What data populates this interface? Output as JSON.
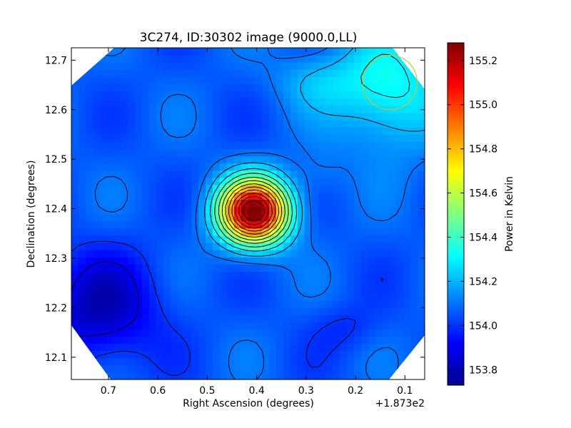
{
  "chart_data": {
    "type": "heatmap",
    "title": "3C274, ID:30302 image (9000.0,LL)",
    "xlabel": "Right Ascension (degrees)",
    "ylabel": "Declination (degrees)",
    "x_offset_label": "+1.873e2",
    "xlim": [
      0.775,
      0.06
    ],
    "ylim": [
      12.055,
      12.725
    ],
    "x_ticks": [
      {
        "value": 0.7,
        "label": "0.7"
      },
      {
        "value": 0.6,
        "label": "0.6"
      },
      {
        "value": 0.5,
        "label": "0.5"
      },
      {
        "value": 0.4,
        "label": "0.4"
      },
      {
        "value": 0.3,
        "label": "0.3"
      },
      {
        "value": 0.2,
        "label": "0.2"
      },
      {
        "value": 0.1,
        "label": "0.1"
      }
    ],
    "y_ticks": [
      {
        "value": 12.1,
        "label": "12.1"
      },
      {
        "value": 12.2,
        "label": "12.2"
      },
      {
        "value": 12.3,
        "label": "12.3"
      },
      {
        "value": 12.4,
        "label": "12.4"
      },
      {
        "value": 12.5,
        "label": "12.5"
      },
      {
        "value": 12.6,
        "label": "12.6"
      },
      {
        "value": 12.7,
        "label": "12.7"
      }
    ],
    "colorbar": {
      "label": "Power in Kelvin",
      "range": [
        153.73,
        155.28
      ],
      "ticks": [
        {
          "value": 153.8,
          "label": "153.8"
        },
        {
          "value": 154.0,
          "label": "154.0"
        },
        {
          "value": 154.2,
          "label": "154.2"
        },
        {
          "value": 154.4,
          "label": "154.4"
        },
        {
          "value": 154.6,
          "label": "154.6"
        },
        {
          "value": 154.8,
          "label": "154.8"
        },
        {
          "value": 155.0,
          "label": "155.0"
        },
        {
          "value": 155.2,
          "label": "155.2"
        }
      ],
      "colormap": "jet"
    },
    "peak": {
      "x": 0.405,
      "y": 12.4,
      "value": 155.28
    },
    "beam": {
      "x": 0.13,
      "y": 12.655,
      "radius_deg": 0.055,
      "color": "#d4c21c"
    },
    "contour_levels": [
      153.9,
      154.0,
      154.1,
      154.2,
      154.3,
      154.4,
      154.5,
      154.6,
      154.7,
      154.8,
      154.9,
      155.0,
      155.1,
      155.2
    ],
    "grid": false
  }
}
